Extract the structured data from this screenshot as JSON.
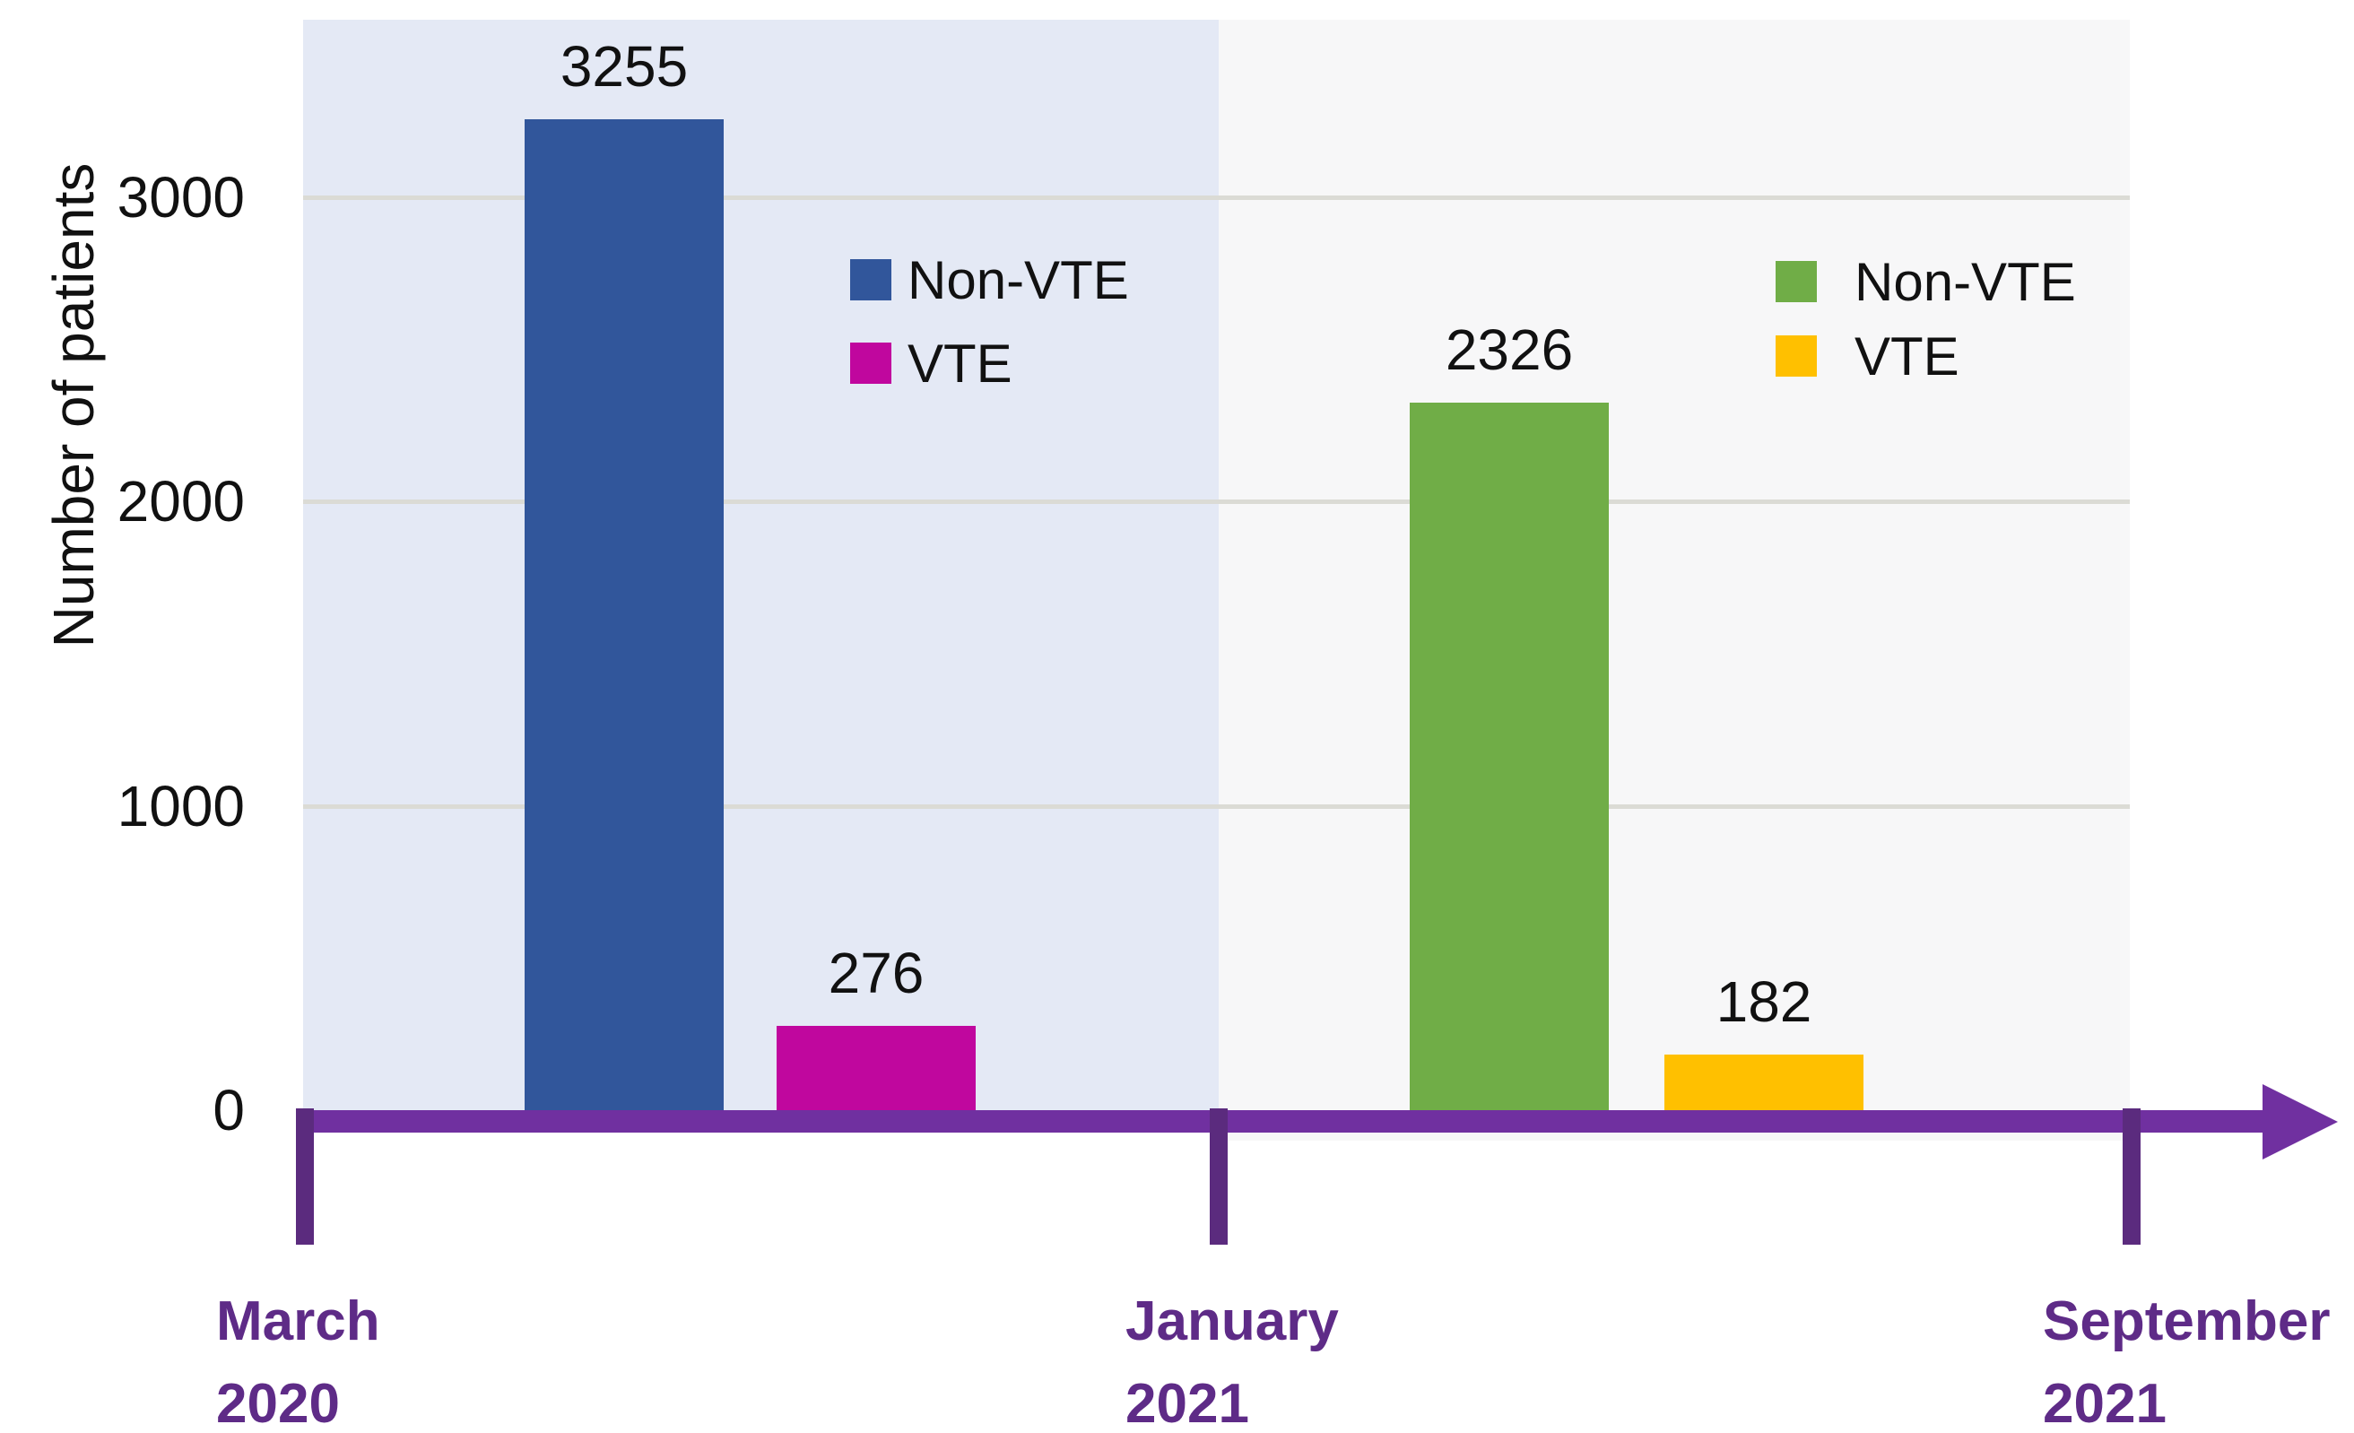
{
  "y_axis": {
    "title": "Number of patients",
    "tick_labels": [
      "0",
      "1000",
      "2000",
      "3000"
    ]
  },
  "legend_period1": {
    "items": [
      {
        "label": "Non-VTE",
        "color": "#31569B"
      },
      {
        "label": "VTE",
        "color": "#C0079E"
      }
    ]
  },
  "legend_period2": {
    "items": [
      {
        "label": "Non-VTE",
        "color": "#70AD47"
      },
      {
        "label": "VTE",
        "color": "#FFC000"
      }
    ]
  },
  "timeline": {
    "bar_color": "#7030A0",
    "tick_color": "#5B2B7E",
    "label_color": "#5E2B87",
    "milestones": [
      {
        "line1": "March",
        "line2": "2020"
      },
      {
        "line1": "January",
        "line2": "2021"
      },
      {
        "line1": "September",
        "line2": "2021"
      }
    ]
  },
  "panels": {
    "period1_background": "#E4E9F5",
    "period2_background": "#F7F7F8",
    "gridline_color": "#DBDBD5"
  },
  "chart_data": {
    "type": "bar",
    "title": "",
    "xlabel": "",
    "ylabel": "Number of patients",
    "yticks": [
      0,
      1000,
      2000,
      3000
    ],
    "ylim": [
      0,
      3650
    ],
    "grid": true,
    "legend_position": "inside-top",
    "groups": [
      {
        "period_start": "March 2020",
        "period_end": "January 2021",
        "series": [
          {
            "name": "Non-VTE",
            "value": 3255,
            "color": "#31569B"
          },
          {
            "name": "VTE",
            "value": 276,
            "color": "#C0079E"
          }
        ]
      },
      {
        "period_start": "January 2021",
        "period_end": "September 2021",
        "series": [
          {
            "name": "Non-VTE",
            "value": 2326,
            "color": "#70AD47"
          },
          {
            "name": "VTE",
            "value": 182,
            "color": "#FFC000"
          }
        ]
      }
    ],
    "value_labels": [
      3255,
      276,
      2326,
      182
    ],
    "timeline_milestones": [
      "March 2020",
      "January 2021",
      "September 2021"
    ]
  }
}
